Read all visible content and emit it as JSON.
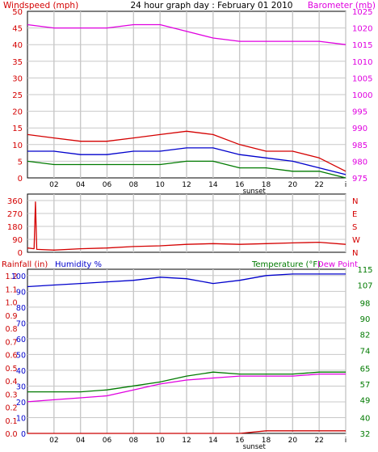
{
  "header": {
    "title": "24 hour graph day : February 01 2010",
    "left_label": "Windspeed (mph)",
    "right_label": "Barometer (mb)"
  },
  "colors": {
    "windspeed": "#d40000",
    "windgust": "#d40000",
    "wind_avg": "#0000cc",
    "wind_low": "#007a00",
    "barometer": "#e000e0",
    "wind_direction": "#d40000",
    "rainfall": "#cc0000",
    "humidity": "#0000cc",
    "temperature": "#007a00",
    "dew_point": "#e000e0",
    "grid": "#c8c8c8",
    "frame": "#000000"
  },
  "chart_data": [
    {
      "type": "line",
      "name": "wind-barometer",
      "x_ticks": [
        "02",
        "04",
        "06",
        "08",
        "10",
        "12",
        "14",
        "16",
        "18",
        "20",
        "22",
        "i"
      ],
      "x_marker": "sunset",
      "left_axis": {
        "label": "Windspeed (mph)",
        "ticks": [
          "0",
          "5",
          "10",
          "15",
          "20",
          "25",
          "30",
          "35",
          "40",
          "45",
          "50"
        ],
        "ylim": [
          0,
          50
        ]
      },
      "right_axis": {
        "label": "Barometer (mb)",
        "ticks": [
          "975",
          "980",
          "985",
          "990",
          "995",
          "1000",
          "1005",
          "1010",
          "1015",
          "1020",
          "1025"
        ],
        "ylim": [
          975,
          1025
        ]
      },
      "x": [
        0,
        2,
        4,
        6,
        8,
        10,
        12,
        14,
        16,
        18,
        20,
        22,
        24
      ],
      "series": [
        {
          "axis": "left",
          "values": [
            13,
            12,
            11,
            11,
            12,
            13,
            14,
            13,
            10,
            8,
            8,
            6,
            2
          ]
        },
        {
          "axis": "left",
          "values": [
            8,
            8,
            7,
            7,
            8,
            8,
            9,
            9,
            7,
            6,
            5,
            3,
            1
          ]
        },
        {
          "axis": "left",
          "values": [
            5,
            4,
            4,
            4,
            4,
            4,
            5,
            5,
            3,
            3,
            2,
            2,
            0
          ]
        },
        {
          "axis": "right",
          "values": [
            1021,
            1020,
            1020,
            1020,
            1021,
            1021,
            1019,
            1017,
            1016,
            1016,
            1016,
            1016,
            1015
          ]
        }
      ]
    },
    {
      "type": "line",
      "name": "wind-direction",
      "left_axis": {
        "ticks": [
          "0",
          "90",
          "180",
          "270",
          "360"
        ],
        "ylim": [
          0,
          405
        ]
      },
      "right_axis": {
        "ticks": [
          "N",
          "W",
          "S",
          "E",
          "N"
        ]
      },
      "x": [
        0,
        0.5,
        0.6,
        0.7,
        2,
        4,
        6,
        8,
        10,
        12,
        14,
        16,
        18,
        20,
        22,
        24
      ],
      "series": [
        {
          "values": [
            30,
            25,
            350,
            20,
            15,
            25,
            30,
            40,
            45,
            55,
            60,
            55,
            60,
            65,
            70,
            55
          ]
        }
      ]
    },
    {
      "type": "line",
      "name": "rain-humidity-temperature",
      "x_ticks": [
        "02",
        "04",
        "06",
        "08",
        "10",
        "12",
        "14",
        "16",
        "18",
        "20",
        "22",
        "i"
      ],
      "x_marker": "sunset",
      "rain_axis": {
        "label": "Rainfall (in)",
        "ticks": [
          "0.0",
          "0.1",
          "0.2",
          "0.3",
          "0.4",
          "0.5",
          "0.6",
          "0.7",
          "0.8",
          "0.9",
          "1.0",
          "1.1",
          "1.2"
        ],
        "ylim": [
          0,
          1.25
        ]
      },
      "humidity_axis": {
        "label": "Humidity %",
        "ticks": [
          "0",
          "10",
          "20",
          "30",
          "40",
          "50",
          "60",
          "70",
          "80",
          "90",
          "100"
        ],
        "ylim": [
          0,
          104
        ]
      },
      "temp_axis": {
        "label": "Temperature (°F)",
        "ticks": [
          "32",
          "40",
          "49",
          "57",
          "65",
          "74",
          "82",
          "90",
          "98",
          "107",
          "115"
        ],
        "ylim": [
          32,
          115
        ]
      },
      "dew_label": "Dew Point",
      "x": [
        0,
        2,
        4,
        6,
        8,
        10,
        12,
        14,
        16,
        18,
        20,
        22,
        24
      ],
      "series": [
        {
          "axis": "humidity",
          "values": [
            93,
            94,
            95,
            96,
            97,
            99,
            98,
            95,
            97,
            100,
            101,
            101,
            101
          ]
        },
        {
          "axis": "temp",
          "values": [
            53,
            53,
            53,
            54,
            56,
            58,
            61,
            63,
            62,
            62,
            62,
            63,
            63
          ]
        },
        {
          "axis": "temp",
          "values": [
            48,
            49,
            50,
            51,
            54,
            57,
            59,
            60,
            61,
            61,
            61,
            62,
            62
          ]
        },
        {
          "axis": "rain",
          "values": [
            0.0,
            0.0,
            0.0,
            0.0,
            0.0,
            0.0,
            0.0,
            0.0,
            0.0,
            0.02,
            0.02,
            0.02,
            0.02
          ]
        }
      ]
    }
  ]
}
